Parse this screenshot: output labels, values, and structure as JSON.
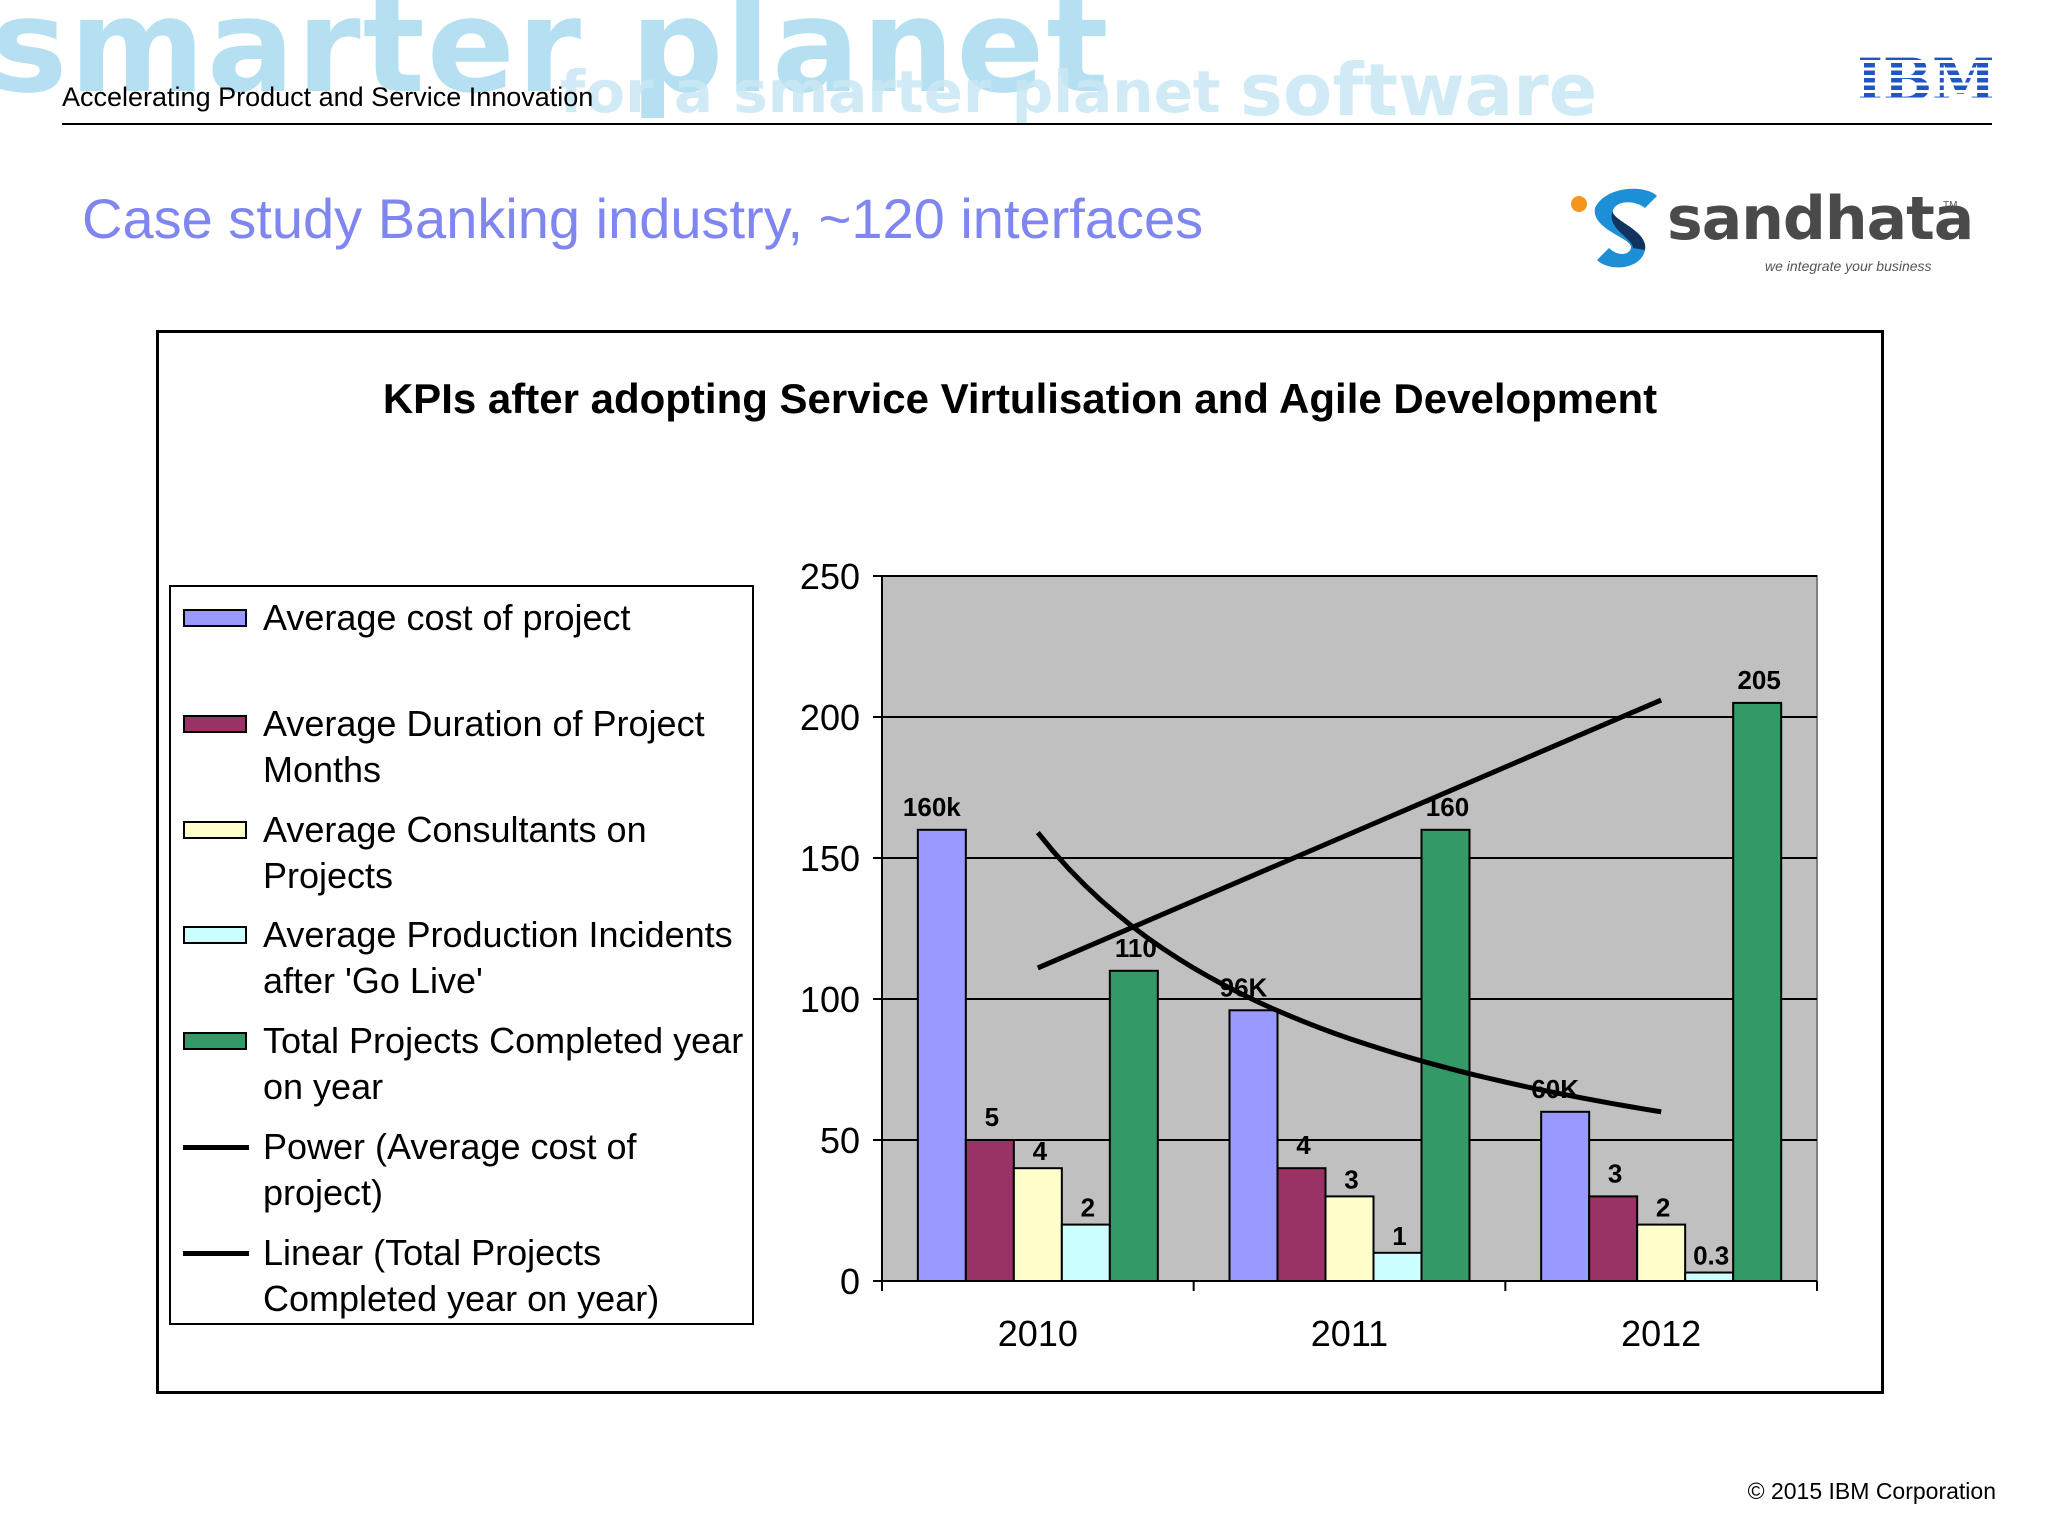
{
  "header": {
    "title": "Accelerating Product and Service Innovation",
    "watermark_words": [
      "smarter planet",
      "software",
      "for a smarter planet",
      "smarter planet"
    ],
    "logo_text": "IBM"
  },
  "slide": {
    "title": "Case study Banking industry, ~120 interfaces",
    "partner_logo": {
      "name": "sandhata",
      "tm": "TM",
      "tagline": "we integrate your business"
    },
    "copyright": "© 2015 IBM Corporation"
  },
  "colors": {
    "title": "#7f86f0",
    "plot_bg": "#c0c0c0",
    "cost": "#9999ff",
    "duration": "#993366",
    "consultants": "#ffffcc",
    "incidents": "#ccffff",
    "projects": "#339966"
  },
  "chart_data": {
    "type": "bar",
    "title": "KPIs after adopting Service Virtulisation and Agile Development",
    "categories": [
      "2010",
      "2011",
      "2012"
    ],
    "ylim": [
      0,
      250
    ],
    "yticks": [
      "0",
      "50",
      "100",
      "150",
      "200",
      "250"
    ],
    "grid": true,
    "legend_position": "left",
    "series": [
      {
        "name": "Average cost of project",
        "values": [
          160,
          96,
          60
        ],
        "labels": [
          "160k",
          "96K",
          "60K"
        ],
        "color": "#9999ff"
      },
      {
        "name": "Average Duration of Project Months",
        "values": [
          50,
          40,
          30
        ],
        "labels": [
          "5",
          "4",
          "3"
        ],
        "color": "#993366"
      },
      {
        "name": "Average Consultants on Projects",
        "values": [
          40,
          30,
          20
        ],
        "labels": [
          "4",
          "3",
          "2"
        ],
        "color": "#ffffcc"
      },
      {
        "name": "Average Production Incidents after 'Go Live'",
        "values": [
          20,
          10,
          3
        ],
        "labels": [
          "2",
          "1",
          "0.3"
        ],
        "color": "#ccffff"
      },
      {
        "name": "Total Projects Completed year on year",
        "values": [
          110,
          160,
          205
        ],
        "labels": [
          "110",
          "160",
          "205"
        ],
        "color": "#339966"
      }
    ],
    "trendlines": [
      {
        "name": "Power (Average cost of project)",
        "type": "power",
        "from": [
          2010,
          159
        ],
        "to": [
          2012,
          60
        ]
      },
      {
        "name": "Linear (Total Projects Completed year on year)",
        "type": "linear",
        "from": [
          2010,
          111
        ],
        "to": [
          2012,
          206
        ]
      }
    ]
  }
}
